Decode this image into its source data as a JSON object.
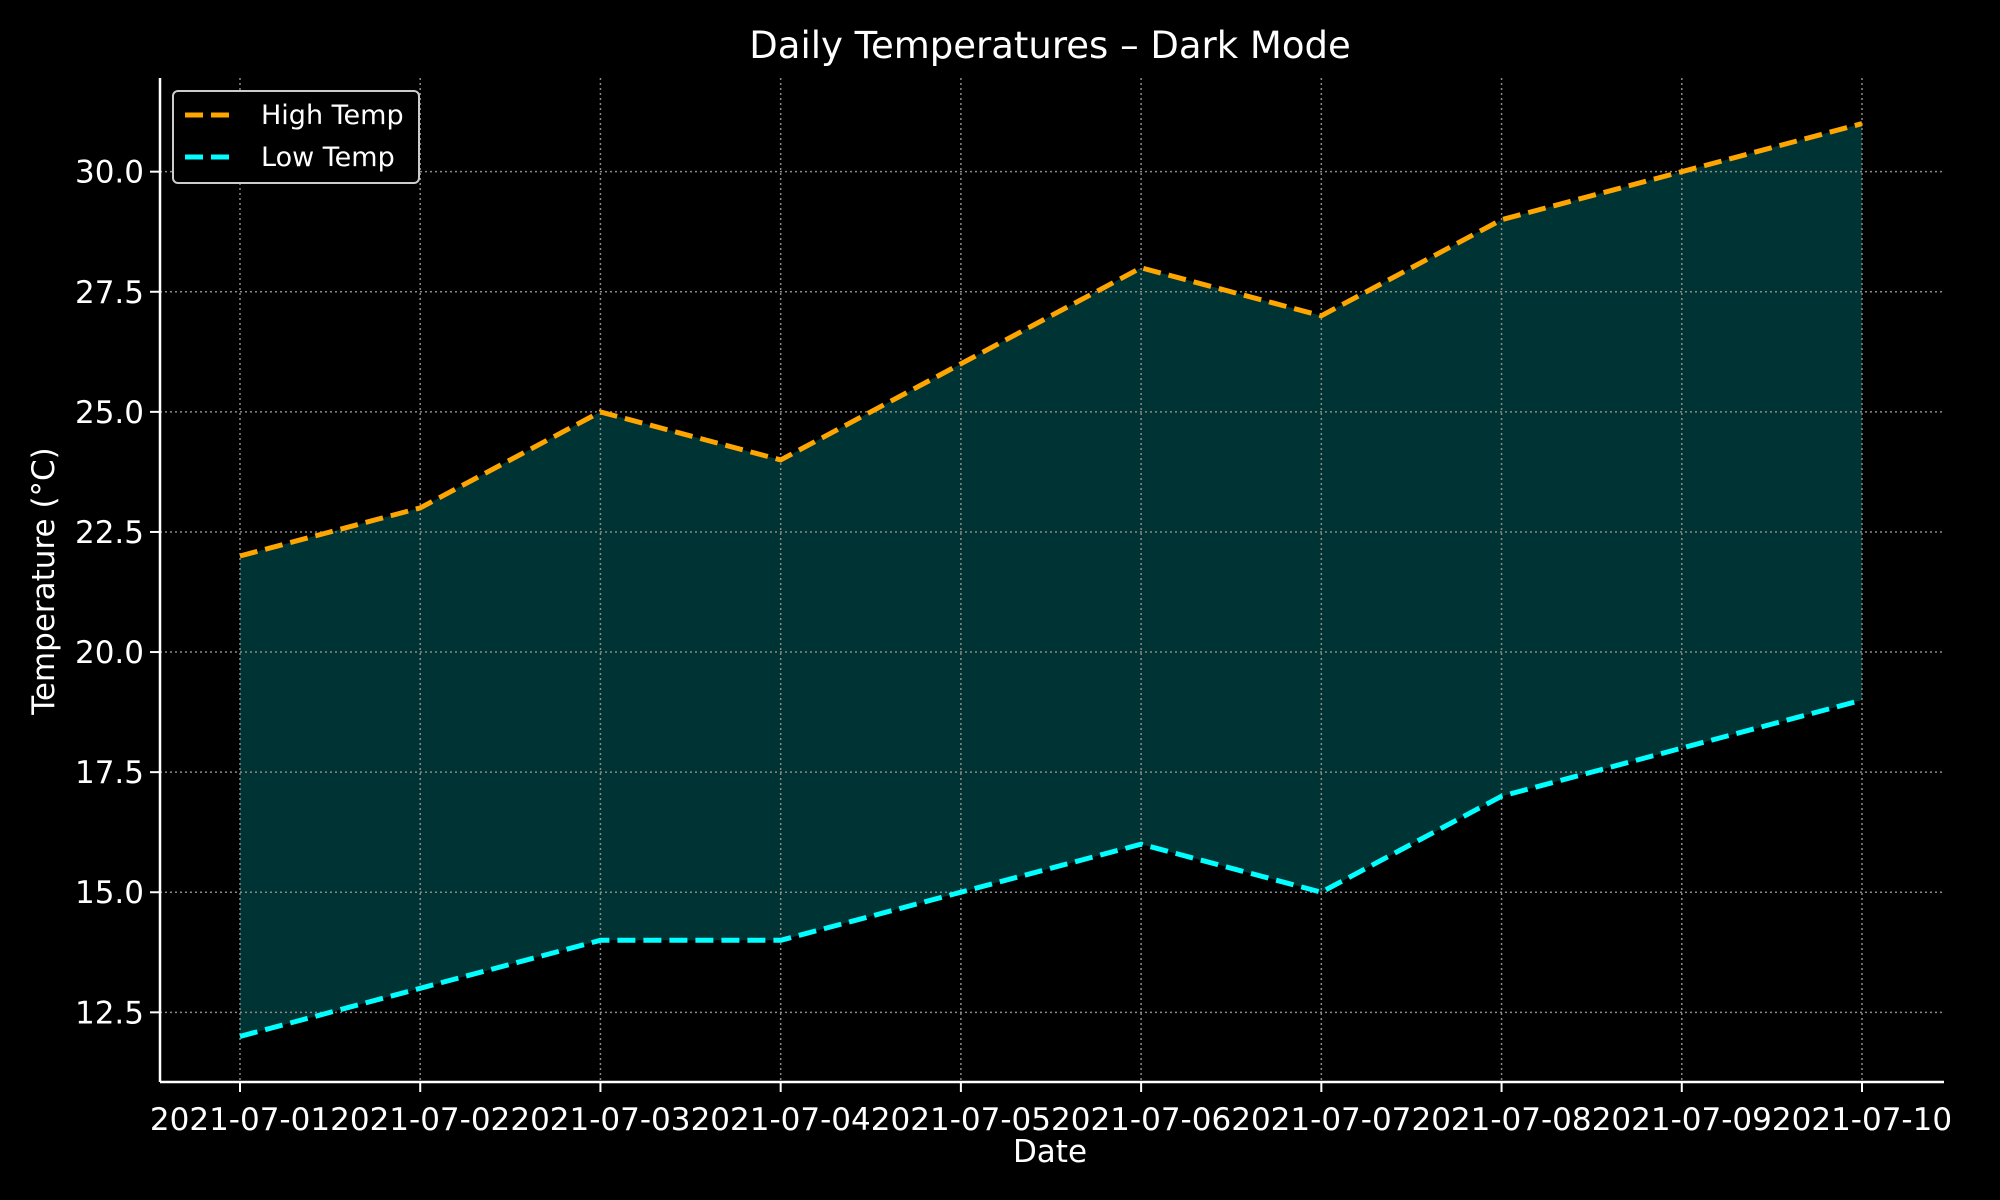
{
  "chart_data": {
    "type": "line",
    "title": "Daily Temperatures – Dark Mode",
    "xlabel": "Date",
    "ylabel": "Temperature (°C)",
    "categories": [
      "2021-07-01",
      "2021-07-02",
      "2021-07-03",
      "2021-07-04",
      "2021-07-05",
      "2021-07-06",
      "2021-07-07",
      "2021-07-08",
      "2021-07-09",
      "2021-07-10"
    ],
    "series": [
      {
        "name": "High Temp",
        "values": [
          22,
          23,
          25,
          24,
          26,
          28,
          27,
          29,
          30,
          31
        ],
        "color": "#ffa500",
        "style": "dashed"
      },
      {
        "name": "Low Temp",
        "values": [
          12,
          13,
          14,
          14,
          15,
          16,
          15,
          17,
          18,
          19
        ],
        "color": "#00ffff",
        "style": "dashed"
      }
    ],
    "fill_between": {
      "series": [
        "High Temp",
        "Low Temp"
      ],
      "color": "#003333"
    },
    "yticks": [
      "12.5",
      "15.0",
      "17.5",
      "20.0",
      "22.5",
      "25.0",
      "27.5",
      "30.0"
    ],
    "ylim": [
      11.05,
      31.95
    ],
    "grid": true,
    "legend_position": "upper-left",
    "background": "#000000",
    "foreground": "#ffffff"
  }
}
